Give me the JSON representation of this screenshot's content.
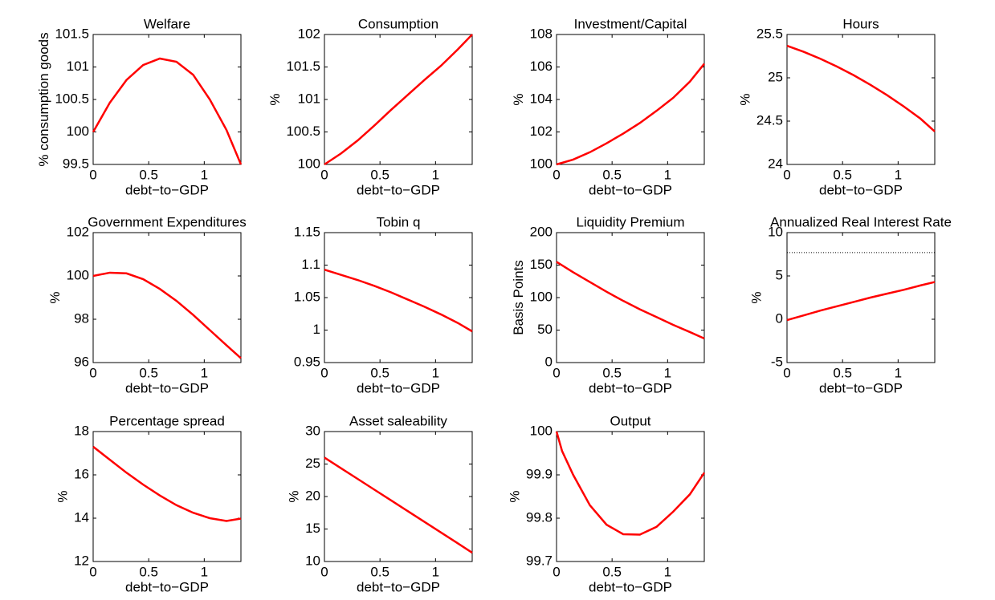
{
  "chart_data": [
    {
      "type": "line",
      "title": "Welfare",
      "xlabel": "debt−to−GDP",
      "ylabel": "% consumption goods",
      "x": [
        0,
        0.15,
        0.3,
        0.45,
        0.6,
        0.75,
        0.9,
        1.05,
        1.2,
        1.33
      ],
      "xlim": [
        0,
        1.33
      ],
      "xticks": [
        0,
        0.5,
        1
      ],
      "ylim": [
        99.5,
        101.5
      ],
      "yticks": [
        99.5,
        100,
        100.5,
        101,
        101.5
      ],
      "series": [
        {
          "color": "#ff0000",
          "values": [
            100,
            100.45,
            100.8,
            101.03,
            101.13,
            101.08,
            100.88,
            100.5,
            100.03,
            99.5
          ]
        }
      ]
    },
    {
      "type": "line",
      "title": "Consumption",
      "xlabel": "debt−to−GDP",
      "ylabel": "%",
      "x": [
        0,
        0.15,
        0.3,
        0.45,
        0.6,
        0.75,
        0.9,
        1.05,
        1.2,
        1.33
      ],
      "xlim": [
        0,
        1.33
      ],
      "xticks": [
        0,
        0.5,
        1
      ],
      "ylim": [
        100,
        102
      ],
      "yticks": [
        100,
        100.5,
        101,
        101.5,
        102
      ],
      "series": [
        {
          "color": "#ff0000",
          "values": [
            100,
            100.17,
            100.37,
            100.6,
            100.84,
            101.07,
            101.3,
            101.52,
            101.77,
            102
          ]
        }
      ]
    },
    {
      "type": "line",
      "title": "Investment/Capital",
      "xlabel": "debt−to−GDP",
      "ylabel": "%",
      "x": [
        0,
        0.15,
        0.3,
        0.45,
        0.6,
        0.75,
        0.9,
        1.05,
        1.2,
        1.33
      ],
      "xlim": [
        0,
        1.33
      ],
      "xticks": [
        0,
        0.5,
        1
      ],
      "ylim": [
        100,
        108
      ],
      "yticks": [
        100,
        102,
        104,
        106,
        108
      ],
      "series": [
        {
          "color": "#ff0000",
          "values": [
            100,
            100.3,
            100.75,
            101.3,
            101.9,
            102.55,
            103.3,
            104.1,
            105.1,
            106.2
          ]
        }
      ]
    },
    {
      "type": "line",
      "title": "Hours",
      "xlabel": "debt−to−GDP",
      "ylabel": "%",
      "x": [
        0,
        0.15,
        0.3,
        0.45,
        0.6,
        0.75,
        0.9,
        1.05,
        1.2,
        1.33
      ],
      "xlim": [
        0,
        1.33
      ],
      "xticks": [
        0,
        0.5,
        1
      ],
      "ylim": [
        24,
        25.5
      ],
      "yticks": [
        24,
        24.5,
        25,
        25.5
      ],
      "series": [
        {
          "color": "#ff0000",
          "values": [
            25.37,
            25.3,
            25.22,
            25.13,
            25.03,
            24.92,
            24.8,
            24.67,
            24.53,
            24.38
          ]
        }
      ]
    },
    {
      "type": "line",
      "title": "Government Expenditures",
      "xlabel": "debt−to−GDP",
      "ylabel": "%",
      "x": [
        0,
        0.15,
        0.3,
        0.45,
        0.6,
        0.75,
        0.9,
        1.05,
        1.2,
        1.33
      ],
      "xlim": [
        0,
        1.33
      ],
      "xticks": [
        0,
        0.5,
        1
      ],
      "ylim": [
        96,
        102
      ],
      "yticks": [
        96,
        98,
        100,
        102
      ],
      "series": [
        {
          "color": "#ff0000",
          "values": [
            100,
            100.15,
            100.12,
            99.85,
            99.4,
            98.85,
            98.2,
            97.5,
            96.8,
            96.2
          ]
        }
      ]
    },
    {
      "type": "line",
      "title": "Tobin q",
      "xlabel": "debt−to−GDP",
      "ylabel": "",
      "x": [
        0,
        0.15,
        0.3,
        0.45,
        0.6,
        0.75,
        0.9,
        1.05,
        1.2,
        1.33
      ],
      "xlim": [
        0,
        1.33
      ],
      "xticks": [
        0,
        0.5,
        1
      ],
      "ylim": [
        0.95,
        1.15
      ],
      "yticks": [
        0.95,
        1,
        1.05,
        1.1,
        1.15
      ],
      "series": [
        {
          "color": "#ff0000",
          "values": [
            1.093,
            1.085,
            1.077,
            1.068,
            1.058,
            1.047,
            1.036,
            1.024,
            1.011,
            0.998
          ]
        }
      ]
    },
    {
      "type": "line",
      "title": "Liquidity Premium",
      "xlabel": "debt−to−GDP",
      "ylabel": "Basis Points",
      "x": [
        0,
        0.15,
        0.3,
        0.45,
        0.6,
        0.75,
        0.9,
        1.05,
        1.2,
        1.33
      ],
      "xlim": [
        0,
        1.33
      ],
      "xticks": [
        0,
        0.5,
        1
      ],
      "ylim": [
        0,
        200
      ],
      "yticks": [
        0,
        50,
        100,
        150,
        200
      ],
      "series": [
        {
          "color": "#ff0000",
          "values": [
            155,
            139,
            124,
            109,
            95,
            82,
            70,
            58,
            47,
            37
          ]
        }
      ]
    },
    {
      "type": "line",
      "title": "Annualized Real Interest Rate",
      "xlabel": "debt−to−GDP",
      "ylabel": "%",
      "x": [
        0,
        0.15,
        0.3,
        0.45,
        0.6,
        0.75,
        0.9,
        1.05,
        1.2,
        1.33
      ],
      "xlim": [
        0,
        1.33
      ],
      "xticks": [
        0,
        0.5,
        1
      ],
      "ylim": [
        -5,
        10
      ],
      "yticks": [
        -5,
        0,
        5,
        10
      ],
      "series": [
        {
          "color": "#ff0000",
          "values": [
            -0.1,
            0.45,
            1.0,
            1.5,
            2.0,
            2.5,
            2.95,
            3.4,
            3.9,
            4.3
          ]
        },
        {
          "color": "#000000",
          "style": "dotted",
          "values": [
            7.7,
            7.7,
            7.7,
            7.7,
            7.7,
            7.7,
            7.7,
            7.7,
            7.7,
            7.7
          ]
        }
      ]
    },
    {
      "type": "line",
      "title": "Percentage spread",
      "xlabel": "debt−to−GDP",
      "ylabel": "%",
      "x": [
        0,
        0.15,
        0.3,
        0.45,
        0.6,
        0.75,
        0.9,
        1.05,
        1.2,
        1.33
      ],
      "xlim": [
        0,
        1.33
      ],
      "xticks": [
        0,
        0.5,
        1
      ],
      "ylim": [
        12,
        18
      ],
      "yticks": [
        12,
        14,
        16,
        18
      ],
      "series": [
        {
          "color": "#ff0000",
          "values": [
            17.3,
            16.7,
            16.1,
            15.55,
            15.05,
            14.6,
            14.25,
            14.0,
            13.87,
            13.98
          ]
        }
      ]
    },
    {
      "type": "line",
      "title": "Asset saleability",
      "xlabel": "debt−to−GDP",
      "ylabel": "%",
      "x": [
        0,
        0.15,
        0.3,
        0.45,
        0.6,
        0.75,
        0.9,
        1.05,
        1.2,
        1.33
      ],
      "xlim": [
        0,
        1.33
      ],
      "xticks": [
        0,
        0.5,
        1
      ],
      "ylim": [
        10,
        30
      ],
      "yticks": [
        10,
        15,
        20,
        25,
        30
      ],
      "series": [
        {
          "color": "#ff0000",
          "values": [
            26,
            24.35,
            22.7,
            21.05,
            19.4,
            17.75,
            16.1,
            14.45,
            12.8,
            11.35
          ]
        }
      ]
    },
    {
      "type": "line",
      "title": "Output",
      "xlabel": "debt−to−GDP",
      "ylabel": "%",
      "x": [
        0,
        0.05,
        0.15,
        0.3,
        0.45,
        0.6,
        0.75,
        0.9,
        1.05,
        1.2,
        1.33
      ],
      "xlim": [
        0,
        1.33
      ],
      "xticks": [
        0,
        0.5,
        1
      ],
      "ylim": [
        99.7,
        100
      ],
      "yticks": [
        99.7,
        99.8,
        99.9,
        100
      ],
      "series": [
        {
          "color": "#ff0000",
          "values": [
            100,
            99.955,
            99.9,
            99.83,
            99.785,
            99.763,
            99.762,
            99.78,
            99.815,
            99.855,
            99.905
          ]
        }
      ]
    }
  ]
}
